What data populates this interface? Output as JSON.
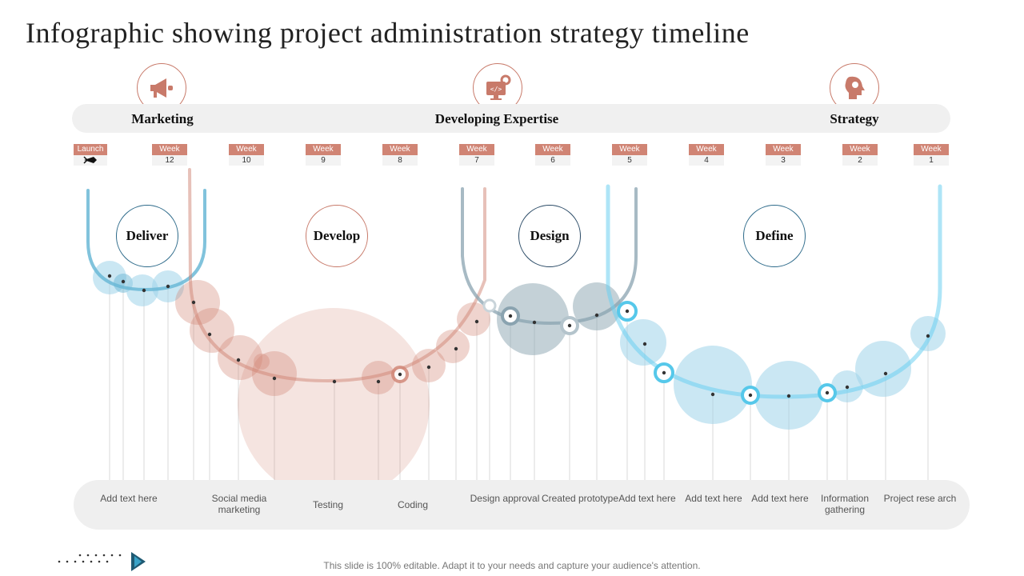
{
  "title": "Infographic showing project administration strategy timeline",
  "phases": [
    {
      "label": "Marketing",
      "icon": "megaphone-icon"
    },
    {
      "label": "Developing Expertise",
      "icon": "code-gear-monitor-icon"
    },
    {
      "label": "Strategy",
      "icon": "lightbulb-head-icon"
    }
  ],
  "launch_label": "Launch",
  "weeks": [
    {
      "label": "Week",
      "num": "12"
    },
    {
      "label": "Week",
      "num": "10"
    },
    {
      "label": "Week",
      "num": "9"
    },
    {
      "label": "Week",
      "num": "8"
    },
    {
      "label": "Week",
      "num": "7"
    },
    {
      "label": "Week",
      "num": "6"
    },
    {
      "label": "Week",
      "num": "5"
    },
    {
      "label": "Week",
      "num": "4"
    },
    {
      "label": "Week",
      "num": "3"
    },
    {
      "label": "Week",
      "num": "2"
    },
    {
      "label": "Week",
      "num": "1"
    }
  ],
  "stages": [
    "Deliver",
    "Develop",
    "Design",
    "Define"
  ],
  "bottom_labels": [
    "Add text here",
    "Social media marketing",
    "Testing",
    "Coding",
    "Design approval",
    "Created prototype",
    "Add text here",
    "Add text here",
    "Add text here",
    "Information gathering",
    "Project rese arch"
  ],
  "footer": "This slide is 100% editable. Adapt it to your needs and capture your audience's attention.",
  "colors": {
    "accent": "#d08474",
    "blue": "#6bb8d6",
    "gray_blue": "#8aa3b0",
    "light_blue": "#9ed3ea"
  }
}
